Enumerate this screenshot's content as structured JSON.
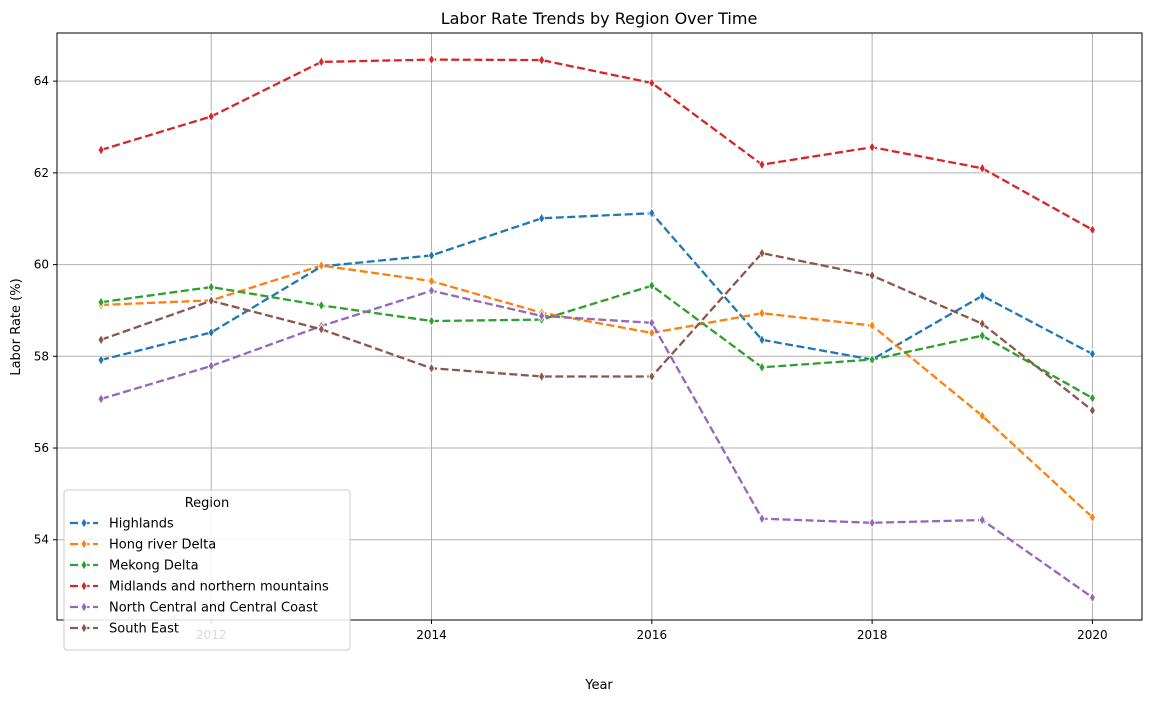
{
  "chart_data": {
    "type": "line",
    "title": "Labor Rate Trends by Region Over Time",
    "xlabel": "Year",
    "ylabel": "Labor Rate (%)",
    "x": [
      2011,
      2012,
      2013,
      2014,
      2015,
      2016,
      2017,
      2018,
      2019,
      2020
    ],
    "xlim": [
      2010.6,
      2020.45
    ],
    "ylim": [
      52.25,
      65.05
    ],
    "xticks": [
      2012,
      2014,
      2016,
      2018,
      2020
    ],
    "yticks": [
      54,
      56,
      58,
      60,
      62,
      64
    ],
    "grid": true,
    "legend": {
      "title": "Region",
      "position": "lower-left"
    },
    "series": [
      {
        "name": "Highlands",
        "color": "#1f77b4",
        "values": [
          57.92,
          58.52,
          59.96,
          60.2,
          61.01,
          61.12,
          58.36,
          57.93,
          59.32,
          58.05
        ]
      },
      {
        "name": "Hong river Delta",
        "color": "#ff7f0e",
        "values": [
          59.12,
          59.22,
          59.98,
          59.64,
          58.95,
          58.51,
          58.94,
          58.67,
          56.7,
          54.49
        ]
      },
      {
        "name": "Mekong Delta",
        "color": "#2ca02c",
        "values": [
          59.18,
          59.51,
          59.11,
          58.77,
          58.8,
          59.54,
          57.76,
          57.93,
          58.45,
          57.09
        ]
      },
      {
        "name": "Midlands and northern mountains",
        "color": "#d62728",
        "values": [
          62.5,
          63.23,
          64.42,
          64.47,
          64.46,
          63.96,
          62.18,
          62.56,
          62.1,
          60.76
        ]
      },
      {
        "name": "North Central and Central Coast",
        "color": "#9467bd",
        "values": [
          57.07,
          57.79,
          58.66,
          59.43,
          58.88,
          58.73,
          54.46,
          54.37,
          54.43,
          52.74
        ]
      },
      {
        "name": "South East",
        "color": "#8c564b",
        "values": [
          58.36,
          59.21,
          58.59,
          57.74,
          57.56,
          57.56,
          60.25,
          59.76,
          58.71,
          56.82
        ]
      }
    ]
  }
}
